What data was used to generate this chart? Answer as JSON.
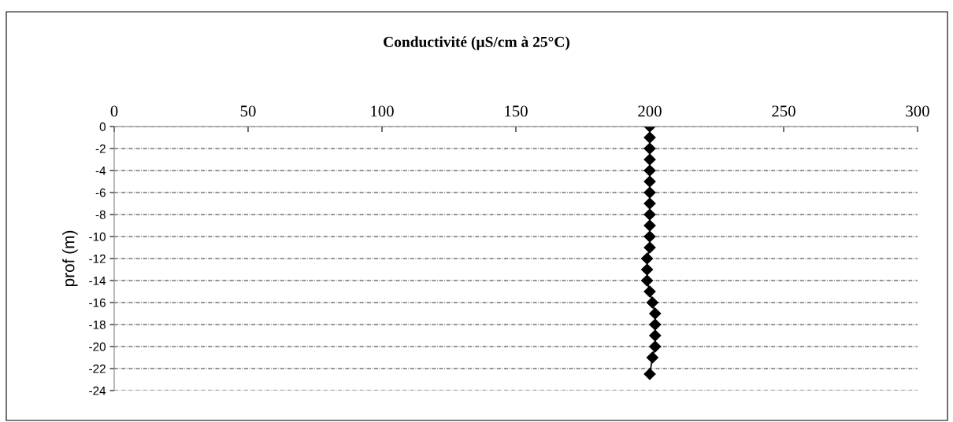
{
  "chart_data": {
    "type": "line",
    "title": "Conductivité (µS/cm à 25°C)",
    "ylabel": "prof (m)",
    "series": [
      {
        "color": "#000000",
        "x": [
          200,
          200,
          200,
          200,
          200,
          200,
          200,
          200,
          200,
          200,
          200,
          200,
          199,
          199,
          199,
          200,
          201,
          202,
          202,
          202,
          202,
          201,
          200
        ],
        "values": [
          0,
          -1,
          -2,
          -3,
          -4,
          -5,
          -6,
          -7,
          -8,
          -9,
          -10,
          -11,
          -12,
          -13,
          -14,
          -15,
          -16,
          -17,
          -18,
          -19,
          -20,
          -21,
          -22.5
        ]
      }
    ],
    "xlim": [
      0,
      300
    ],
    "xticks": [
      0,
      50,
      100,
      150,
      200,
      250,
      300
    ],
    "ylim": [
      -24,
      0
    ],
    "yticks": [
      0,
      -2,
      -4,
      -6,
      -8,
      -10,
      -12,
      -14,
      -16,
      -18,
      -20,
      -22,
      -24
    ],
    "grid": "y",
    "marker": "diamond",
    "line_style": "solid"
  }
}
